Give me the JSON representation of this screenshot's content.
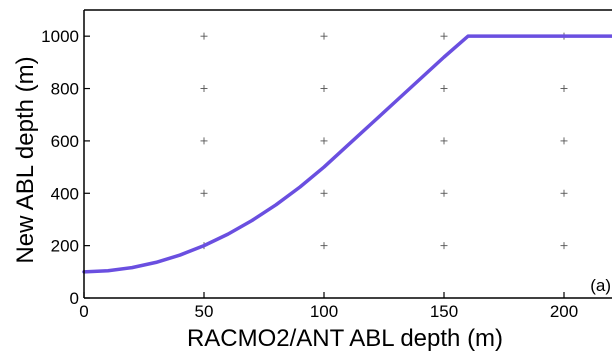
{
  "chart_data": {
    "type": "line",
    "xlabel": "RACMO2/ANT ABL depth (m)",
    "ylabel": "New ABL depth (m)",
    "panel_label": "(a)",
    "xlim": [
      0,
      220
    ],
    "ylim": [
      0,
      1100
    ],
    "xticks": [
      0,
      50,
      100,
      150,
      200
    ],
    "yticks": [
      0,
      200,
      400,
      600,
      800,
      1000
    ],
    "grid": "plus markers at tick intersections",
    "series": [
      {
        "color": "#6a4fe0",
        "x": [
          0,
          10,
          20,
          30,
          40,
          50,
          60,
          70,
          80,
          90,
          100,
          110,
          120,
          130,
          140,
          150,
          160,
          172,
          180,
          190,
          200,
          210,
          220
        ],
        "y": [
          100,
          104,
          116,
          136,
          164,
          200,
          244,
          296,
          356,
          424,
          500,
          584,
          668,
          752,
          836,
          920,
          1000,
          1000,
          1000,
          1000,
          1000,
          1000,
          1000
        ]
      }
    ]
  }
}
